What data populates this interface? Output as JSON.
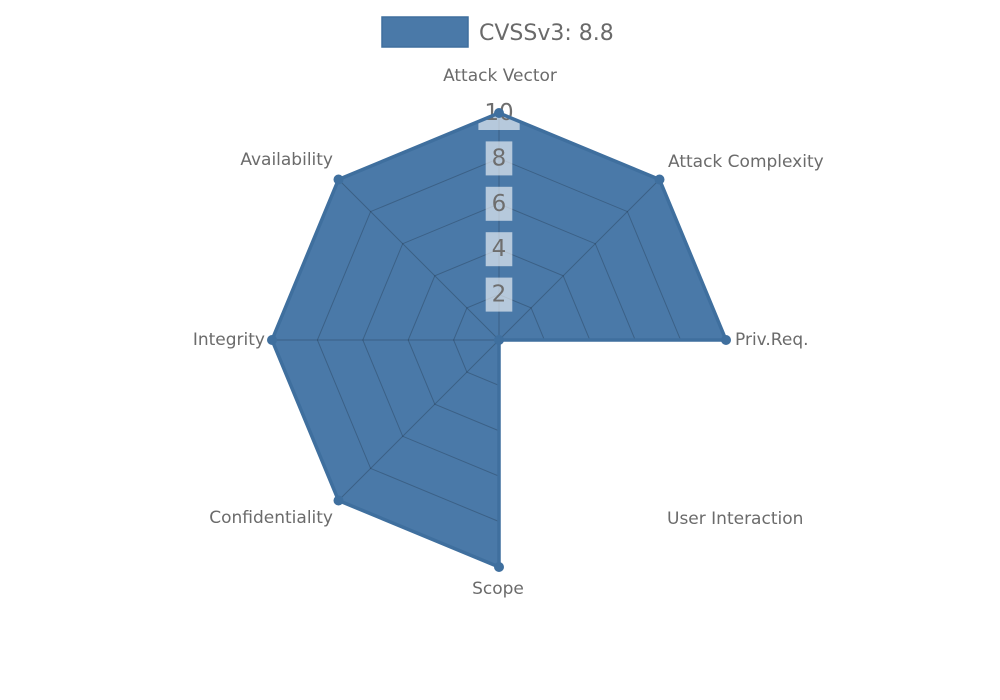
{
  "legend": {
    "label": "CVSSv3: 8.8"
  },
  "chart_data": {
    "type": "radar",
    "title": "",
    "legend_label": "CVSSv3: 8.8",
    "legend_position": "top",
    "axes": [
      "Attack Vector",
      "Attack Complexity",
      "Priv.Req.",
      "User Interaction",
      "Scope",
      "Confidentiality",
      "Integrity",
      "Availability"
    ],
    "series": [
      {
        "name": "CVSSv3: 8.8",
        "values": [
          10,
          10,
          10,
          0,
          10,
          10,
          10,
          10
        ]
      }
    ],
    "scale": {
      "min": 0,
      "max": 10,
      "step": 2,
      "tick_labels": [
        "2",
        "4",
        "6",
        "8",
        "10"
      ]
    },
    "grid": true,
    "grid_shape": "polygon",
    "colors": {
      "fill": "#4a79a8",
      "border": "#3f6f9e",
      "grid": "rgba(0,0,0,0.20)",
      "tick_box_bg": "rgba(255,255,255,0.60)",
      "tick_text": "#6e6e6e",
      "label_text": "#6b6b6b",
      "legend_text": "#6a6a6a"
    }
  }
}
